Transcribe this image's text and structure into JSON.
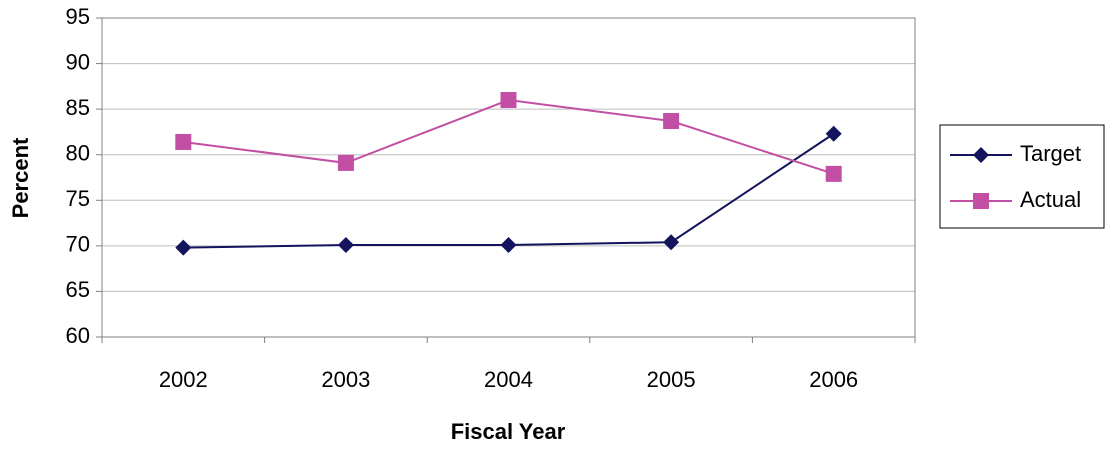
{
  "chart_data": {
    "type": "line",
    "x_label": "Fiscal Year",
    "y_label": "Percent",
    "categories": [
      "2002",
      "2003",
      "2004",
      "2005",
      "2006"
    ],
    "series": [
      {
        "name": "Target",
        "color": "#14145e",
        "marker": "diamond",
        "values": [
          69.8,
          70.1,
          70.1,
          70.4,
          82.3
        ]
      },
      {
        "name": "Actual",
        "color": "#c24fa3",
        "marker": "square",
        "values": [
          81.4,
          79.1,
          86,
          83.7,
          77.9
        ]
      }
    ],
    "ylim": [
      60,
      95
    ],
    "yticks": [
      60,
      65,
      70,
      75,
      80,
      85,
      90,
      95
    ],
    "grid": true,
    "legend": "right"
  }
}
